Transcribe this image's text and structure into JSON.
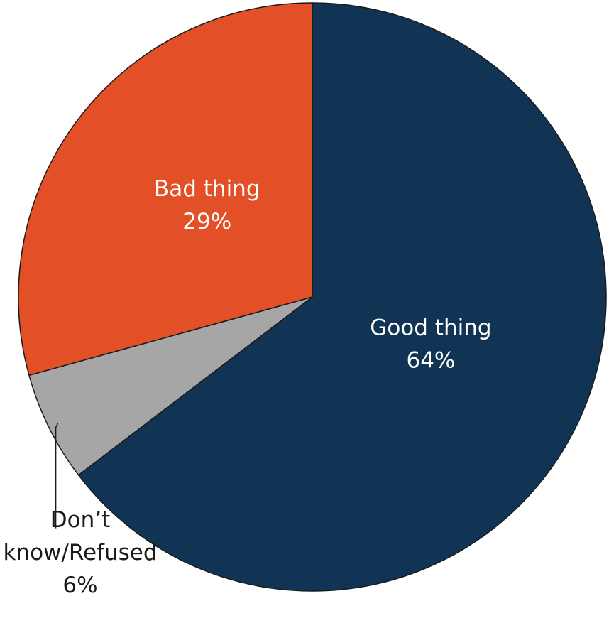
{
  "chart_data": {
    "type": "pie",
    "slices": [
      {
        "label": "Good thing",
        "pct_label": "64%",
        "value": 64,
        "color": "#123454",
        "label_position": "inside"
      },
      {
        "label": "Don’t know/Refused",
        "label_lines": [
          "Don’t",
          "know/Refused"
        ],
        "pct_label": "6%",
        "value": 6,
        "color": "#a6a6a6",
        "label_position": "outside"
      },
      {
        "label": "Bad thing",
        "pct_label": "29%",
        "value": 29,
        "color": "#e34f27",
        "label_position": "inside"
      }
    ],
    "start": "12 o'clock",
    "direction": "clockwise",
    "legend": "none"
  }
}
